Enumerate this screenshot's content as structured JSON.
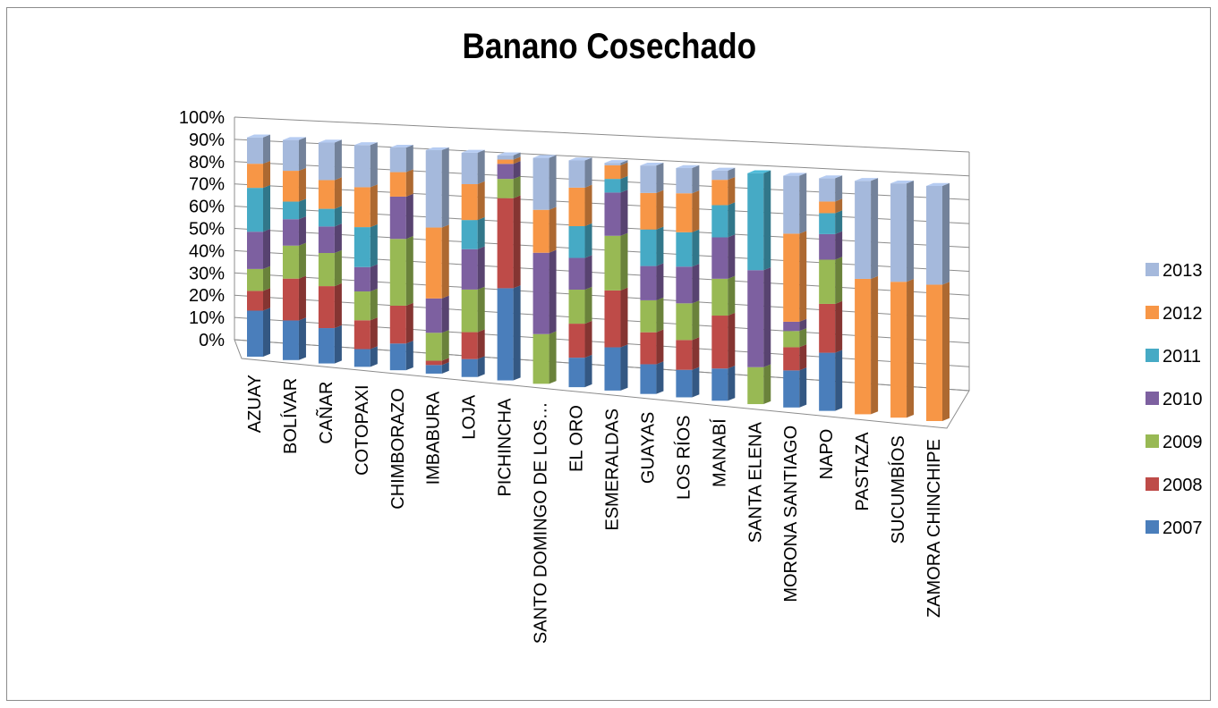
{
  "chart_data": {
    "type": "bar",
    "stacked": true,
    "normalized": true,
    "three_d": true,
    "title": "Banano Cosechado",
    "xlabel": "",
    "ylabel": "",
    "ylim": [
      0,
      100
    ],
    "y_ticks": [
      "0%",
      "10%",
      "20%",
      "30%",
      "40%",
      "50%",
      "60%",
      "70%",
      "80%",
      "90%",
      "100%"
    ],
    "grid": true,
    "legend_position": "right",
    "categories": [
      "AZUAY",
      "BOLÍVAR",
      "CAÑAR",
      "COTOPAXI",
      "CHIMBORAZO",
      "IMBABURA",
      "LOJA",
      "PICHINCHA",
      "SANTO DOMINGO DE LOS…",
      "EL ORO",
      "ESMERALDAS",
      "GUAYAS",
      "LOS RÍOS",
      "MANABÍ",
      "SANTA ELENA",
      "MORONA SANTIAGO",
      "NAPO",
      "PASTAZA",
      "SUCUMBÍOS",
      "ZAMORA CHINCHIPE"
    ],
    "series": [
      {
        "name": "2007",
        "color": "#4a7ebb",
        "values": [
          21,
          18,
          16,
          8,
          12,
          4,
          8,
          43,
          0,
          13,
          19,
          13,
          12,
          14,
          0,
          16,
          25,
          0,
          0,
          0
        ]
      },
      {
        "name": "2008",
        "color": "#be4b48",
        "values": [
          9,
          19,
          19,
          13,
          17,
          2,
          12,
          42,
          0,
          15,
          25,
          14,
          13,
          23,
          0,
          10,
          21,
          0,
          0,
          0
        ]
      },
      {
        "name": "2009",
        "color": "#98b954",
        "values": [
          10,
          15,
          15,
          13,
          30,
          13,
          19,
          9,
          22,
          15,
          24,
          14,
          16,
          16,
          16,
          7,
          19,
          0,
          0,
          0
        ]
      },
      {
        "name": "2010",
        "color": "#7d60a0",
        "values": [
          17,
          12,
          12,
          11,
          19,
          16,
          18,
          7,
          36,
          14,
          19,
          15,
          16,
          18,
          42,
          4,
          11,
          0,
          0,
          0
        ]
      },
      {
        "name": "2011",
        "color": "#46aac5",
        "values": [
          20,
          8,
          8,
          18,
          0,
          0,
          13,
          0,
          0,
          14,
          6,
          16,
          15,
          14,
          42,
          0,
          9,
          0,
          0,
          0
        ]
      },
      {
        "name": "2012",
        "color": "#f79646",
        "values": [
          11,
          14,
          13,
          18,
          11,
          33,
          16,
          2,
          19,
          17,
          6,
          16,
          17,
          11,
          0,
          38,
          5,
          58,
          58,
          58
        ]
      },
      {
        "name": "2013",
        "color": "#a5b9dc",
        "values": [
          12,
          14,
          17,
          19,
          11,
          36,
          14,
          2,
          23,
          12,
          1,
          12,
          11,
          4,
          0,
          25,
          10,
          42,
          42,
          42
        ]
      }
    ]
  }
}
